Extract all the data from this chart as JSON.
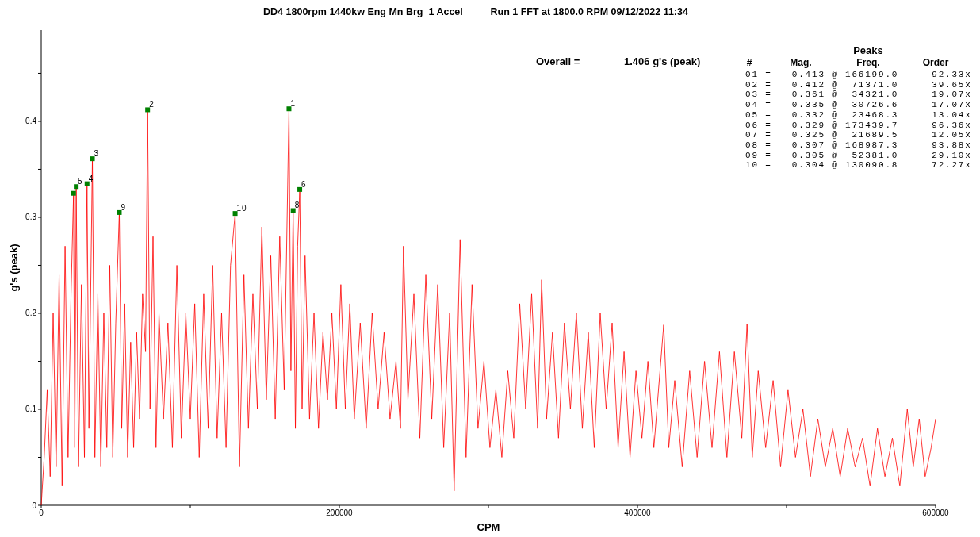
{
  "chart_data": {
    "type": "line",
    "title": "DD4 1800rpm 1440kw Eng Mn Brg  1 Accel          Run 1 FFT at 1800.0 RPM 09/12/2022 11:34",
    "xlabel": "CPM",
    "ylabel": "g's (peak)",
    "xlim": [
      0,
      600000
    ],
    "ylim": [
      0,
      0.495
    ],
    "xticks": [
      0,
      {
        "value": 100000,
        "label": null
      },
      200000,
      {
        "value": 300000,
        "label": null
      },
      400000,
      {
        "value": 500000,
        "label": null
      },
      600000
    ],
    "yticks": [
      0,
      {
        "value": 0.05,
        "label": null
      },
      0.1,
      {
        "value": 0.15,
        "label": null
      },
      0.2,
      {
        "value": 0.25,
        "label": null
      },
      0.3,
      {
        "value": 0.35,
        "label": null
      },
      0.4,
      {
        "value": 0.45,
        "label": null
      }
    ],
    "series": [
      {
        "color": "#ff0000",
        "marker": "none",
        "x": [
          0,
          2000,
          4000,
          6000,
          8000,
          10000,
          12000,
          14000,
          16000,
          18000,
          20000,
          21689.5,
          22500,
          23468.3,
          25000,
          27000,
          29000,
          30726.6,
          32000,
          34321,
          36000,
          38000,
          40000,
          42000,
          44000,
          46000,
          48000,
          50000,
          52381,
          54000,
          56000,
          58000,
          60000,
          62000,
          64000,
          66000,
          68000,
          70000,
          71371,
          73000,
          75000,
          77000,
          79000,
          82000,
          85000,
          88000,
          91000,
          94000,
          97000,
          100000,
          103000,
          106000,
          109000,
          112000,
          115000,
          118000,
          121000,
          124000,
          127000,
          130090.8,
          133000,
          136000,
          139000,
          142000,
          145000,
          148000,
          151000,
          154000,
          157000,
          160000,
          163000,
          166199,
          167500,
          168987.3,
          170500,
          172000,
          173439.7,
          175000,
          177000,
          180000,
          183000,
          186000,
          189000,
          192000,
          195000,
          198000,
          201000,
          204000,
          207000,
          210000,
          214000,
          218000,
          222000,
          226000,
          230000,
          234000,
          238000,
          241000,
          243000,
          246000,
          250000,
          254000,
          258000,
          262000,
          266000,
          270000,
          274000,
          277000,
          281000,
          285000,
          289000,
          293000,
          297000,
          301000,
          305000,
          309000,
          313000,
          317000,
          321000,
          325000,
          329000,
          333000,
          335700,
          339000,
          343000,
          347000,
          351000,
          355000,
          359000,
          363000,
          367000,
          371000,
          375000,
          379000,
          383000,
          387000,
          391000,
          395000,
          399000,
          403000,
          407000,
          411000,
          417600,
          421000,
          425000,
          430000,
          435000,
          440000,
          445000,
          450000,
          455000,
          460000,
          465000,
          470000,
          473500,
          477000,
          481000,
          486000,
          491000,
          496000,
          501000,
          506000,
          511000,
          516000,
          521000,
          526000,
          531000,
          536000,
          541000,
          546000,
          551000,
          556000,
          561000,
          566000,
          571000,
          576000,
          581000,
          585000,
          589000,
          593000,
          597000,
          600000
        ],
        "values": [
          0,
          0.05,
          0.12,
          0.03,
          0.2,
          0.04,
          0.24,
          0.02,
          0.27,
          0.05,
          0.22,
          0.325,
          0.06,
          0.332,
          0.04,
          0.23,
          0.05,
          0.335,
          0.08,
          0.361,
          0.05,
          0.22,
          0.04,
          0.2,
          0.06,
          0.25,
          0.05,
          0.19,
          0.305,
          0.08,
          0.21,
          0.05,
          0.17,
          0.06,
          0.18,
          0.09,
          0.22,
          0.16,
          0.412,
          0.1,
          0.28,
          0.06,
          0.2,
          0.09,
          0.19,
          0.06,
          0.25,
          0.07,
          0.2,
          0.09,
          0.21,
          0.05,
          0.22,
          0.08,
          0.25,
          0.07,
          0.2,
          0.06,
          0.25,
          0.304,
          0.04,
          0.24,
          0.08,
          0.22,
          0.1,
          0.29,
          0.11,
          0.26,
          0.09,
          0.28,
          0.12,
          0.413,
          0.14,
          0.307,
          0.08,
          0.27,
          0.329,
          0.1,
          0.26,
          0.09,
          0.2,
          0.08,
          0.18,
          0.11,
          0.2,
          0.1,
          0.23,
          0.1,
          0.21,
          0.09,
          0.19,
          0.08,
          0.2,
          0.1,
          0.18,
          0.09,
          0.15,
          0.08,
          0.27,
          0.11,
          0.22,
          0.07,
          0.24,
          0.09,
          0.23,
          0.06,
          0.2,
          0.015,
          0.277,
          0.05,
          0.23,
          0.08,
          0.15,
          0.06,
          0.12,
          0.05,
          0.14,
          0.07,
          0.21,
          0.1,
          0.22,
          0.08,
          0.235,
          0.09,
          0.18,
          0.07,
          0.19,
          0.1,
          0.2,
          0.08,
          0.18,
          0.06,
          0.2,
          0.1,
          0.19,
          0.06,
          0.16,
          0.05,
          0.14,
          0.07,
          0.15,
          0.06,
          0.188,
          0.06,
          0.13,
          0.04,
          0.14,
          0.05,
          0.15,
          0.06,
          0.16,
          0.05,
          0.16,
          0.07,
          0.189,
          0.05,
          0.14,
          0.06,
          0.13,
          0.04,
          0.12,
          0.05,
          0.1,
          0.03,
          0.09,
          0.04,
          0.08,
          0.03,
          0.08,
          0.04,
          0.07,
          0.02,
          0.08,
          0.03,
          0.07,
          0.02,
          0.1,
          0.04,
          0.09,
          0.03,
          0.06,
          0.09
        ]
      },
      {
        "type": "scatter",
        "color": "#008000",
        "marker": "square",
        "x": [
          166199.0,
          71371.0,
          34321.0,
          30726.6,
          23468.3,
          173439.7,
          21689.5,
          168987.3,
          52381.0,
          130090.8
        ],
        "values": [
          0.413,
          0.412,
          0.361,
          0.335,
          0.332,
          0.329,
          0.325,
          0.307,
          0.305,
          0.304
        ]
      }
    ],
    "annotations": [
      {
        "text": "1",
        "x": 166199.0,
        "y": 0.413
      },
      {
        "text": "2",
        "x": 71371.0,
        "y": 0.412
      },
      {
        "text": "3",
        "x": 34321.0,
        "y": 0.361
      },
      {
        "text": "4",
        "x": 30726.6,
        "y": 0.335
      },
      {
        "text": "5",
        "x": 23468.3,
        "y": 0.332
      },
      {
        "text": "6",
        "x": 173439.7,
        "y": 0.329
      },
      {
        "text": "8",
        "x": 168987.3,
        "y": 0.307
      },
      {
        "text": "9",
        "x": 52381.0,
        "y": 0.305
      },
      {
        "text": "10",
        "x": 130090.8,
        "y": 0.304
      },
      "Overall =",
      "1.406 g's (peak)",
      "Peaks",
      "#",
      "Mag.",
      "Freq.",
      "Order",
      "01 =   0.413 @ 166199.0     92.33x",
      "02 =   0.412 @  71371.0     39.65x",
      "03 =   0.361 @  34321.0     19.07x",
      "04 =   0.335 @  30726.6     17.07x",
      "05 =   0.332 @  23468.3     13.04x",
      "06 =   0.329 @ 173439.7     96.36x",
      "07 =   0.325 @  21689.5     12.05x",
      "08 =   0.307 @ 168987.3     93.88x",
      "09 =   0.305 @  52381.0     29.10x",
      "10 =   0.304 @ 130090.8     72.27x"
    ]
  }
}
